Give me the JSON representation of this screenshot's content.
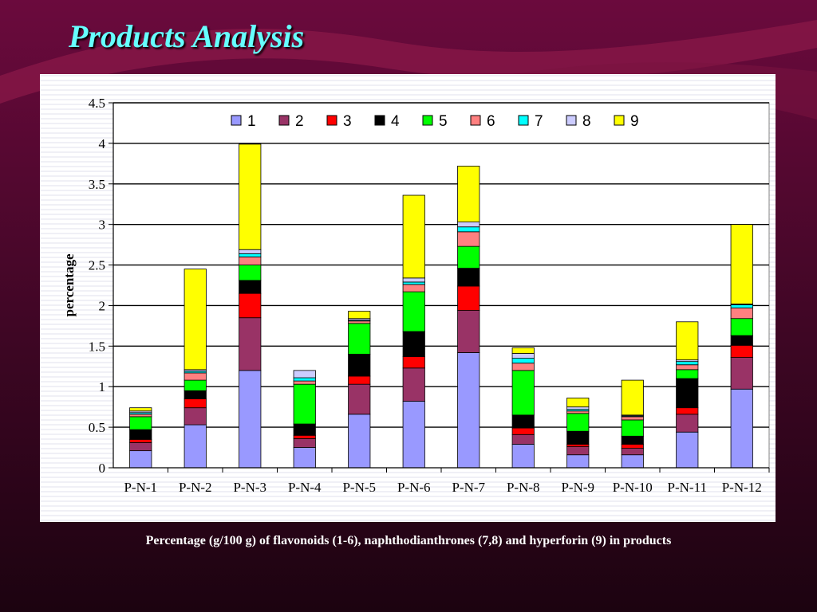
{
  "slide": {
    "title": "Products Analysis",
    "caption": "Percentage (g/100 g) of flavonoids (1-6), naphthodianthrones (7,8) and hyperforin (9) in products"
  },
  "chart_data": {
    "type": "bar",
    "stacked": true,
    "ylabel": "percentage",
    "xlabel": "",
    "ylim": [
      0,
      4.5
    ],
    "yticks": [
      "0",
      "0.5",
      "1",
      "1.5",
      "2",
      "2.5",
      "3",
      "3.5",
      "4",
      "4.5"
    ],
    "grid": true,
    "legend_position": "top",
    "categories": [
      "P-N-1",
      "P-N-2",
      "P-N-3",
      "P-N-4",
      "P-N-5",
      "P-N-6",
      "P-N-7",
      "P-N-8",
      "P-N-9",
      "P-N-10",
      "P-N-11",
      "P-N-12"
    ],
    "series": [
      {
        "name": "1",
        "color": "#9999ff",
        "values": [
          0.21,
          0.53,
          1.2,
          0.25,
          0.66,
          0.82,
          1.42,
          0.29,
          0.16,
          0.16,
          0.44,
          0.97
        ]
      },
      {
        "name": "2",
        "color": "#993366",
        "values": [
          0.1,
          0.21,
          0.65,
          0.11,
          0.37,
          0.41,
          0.52,
          0.12,
          0.1,
          0.08,
          0.22,
          0.39
        ]
      },
      {
        "name": "3",
        "color": "#ff0000",
        "values": [
          0.04,
          0.11,
          0.3,
          0.04,
          0.1,
          0.14,
          0.3,
          0.08,
          0.03,
          0.05,
          0.08,
          0.15
        ]
      },
      {
        "name": "4",
        "color": "#000000",
        "values": [
          0.12,
          0.1,
          0.16,
          0.14,
          0.27,
          0.31,
          0.22,
          0.16,
          0.16,
          0.1,
          0.36,
          0.12
        ]
      },
      {
        "name": "5",
        "color": "#00ff00",
        "values": [
          0.16,
          0.13,
          0.19,
          0.49,
          0.38,
          0.49,
          0.27,
          0.55,
          0.22,
          0.2,
          0.11,
          0.21
        ]
      },
      {
        "name": "6",
        "color": "#ff8080",
        "values": [
          0.03,
          0.09,
          0.1,
          0.04,
          0.03,
          0.09,
          0.18,
          0.09,
          0.03,
          0.04,
          0.06,
          0.13
        ]
      },
      {
        "name": "7",
        "color": "#00ffff",
        "values": [
          0.02,
          0.02,
          0.04,
          0.04,
          0.01,
          0.03,
          0.06,
          0.06,
          0.02,
          0.01,
          0.04,
          0.04
        ]
      },
      {
        "name": "8",
        "color": "#ccccff",
        "values": [
          0.02,
          0.02,
          0.05,
          0.09,
          0.02,
          0.05,
          0.06,
          0.06,
          0.03,
          0.01,
          0.02,
          0.01
        ]
      },
      {
        "name": "9",
        "color": "#ffff00",
        "values": [
          0.04,
          1.24,
          1.3,
          0.0,
          0.09,
          1.02,
          0.69,
          0.07,
          0.11,
          0.43,
          0.47,
          0.98
        ]
      }
    ]
  }
}
